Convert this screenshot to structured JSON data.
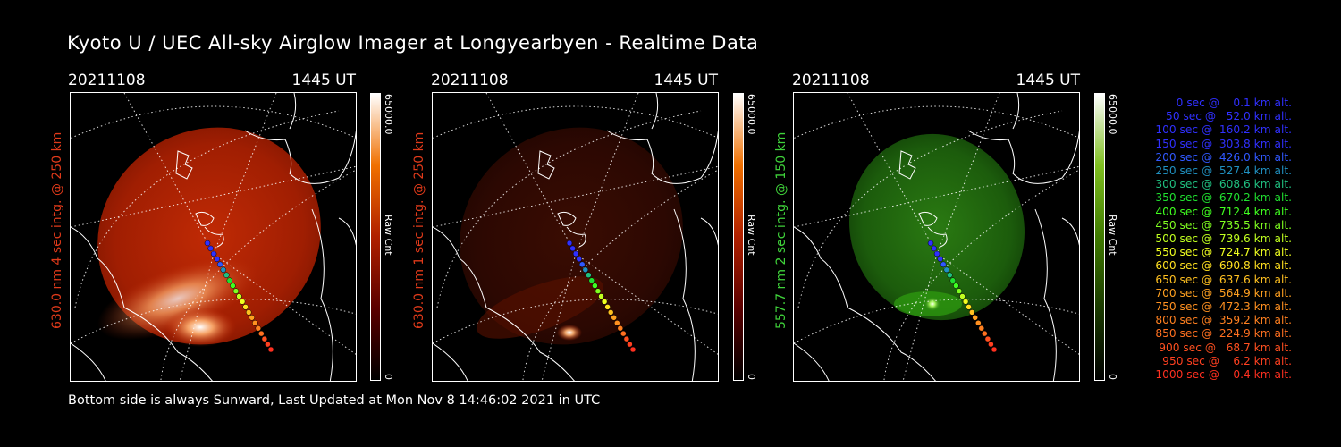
{
  "title": "Kyoto U / UEC All-sky Airglow Imager at Longyearbyen - Realtime Data",
  "footer": "Bottom side is always Sunward, Last Updated at Mon Nov  8 14:46:02 2021 in UTC",
  "panels": [
    {
      "date": "20211108",
      "time": "1445 UT",
      "label": "630.0 nm 4 sec intg. @ 250 km",
      "label_color": "#e03a1a",
      "colorbar_max": "65000.0",
      "colorbar_min": "0",
      "colorbar_unit": "Raw Cnt",
      "theme": "red",
      "glow": "bright"
    },
    {
      "date": "20211108",
      "time": "1445 UT",
      "label": "630.0 nm 1 sec intg. @ 250 km",
      "label_color": "#e03a1a",
      "colorbar_max": "65000.0",
      "colorbar_min": "0",
      "colorbar_unit": "Raw Cnt",
      "theme": "red",
      "glow": "dim"
    },
    {
      "date": "20211108",
      "time": "1445 UT",
      "label": "557.7 nm 2 sec intg. @ 150 km",
      "label_color": "#3fd23a",
      "colorbar_max": "65000.0",
      "colorbar_min": "0",
      "colorbar_unit": "Raw Cnt",
      "theme": "green",
      "glow": "green"
    }
  ],
  "legend": [
    {
      "text": "   0 sec @    0.1 km alt.",
      "color": "#3030ff"
    },
    {
      "text": "  50 sec @   52.0 km alt.",
      "color": "#3030ff"
    },
    {
      "text": " 100 sec @  160.2 km alt.",
      "color": "#3030ff"
    },
    {
      "text": " 150 sec @  303.8 km alt.",
      "color": "#3030ff"
    },
    {
      "text": " 200 sec @  426.0 km alt.",
      "color": "#3058ff"
    },
    {
      "text": " 250 sec @  527.4 km alt.",
      "color": "#2090c0"
    },
    {
      "text": " 300 sec @  608.6 km alt.",
      "color": "#20c080"
    },
    {
      "text": " 350 sec @  670.2 km alt.",
      "color": "#20e030"
    },
    {
      "text": " 400 sec @  712.4 km alt.",
      "color": "#40ff20"
    },
    {
      "text": " 450 sec @  735.5 km alt.",
      "color": "#80ff20"
    },
    {
      "text": " 500 sec @  739.6 km alt.",
      "color": "#c0ff20"
    },
    {
      "text": " 550 sec @  724.7 km alt.",
      "color": "#f0ff20"
    },
    {
      "text": " 600 sec @  690.8 km alt.",
      "color": "#ffe020"
    },
    {
      "text": " 650 sec @  637.6 km alt.",
      "color": "#ffc020"
    },
    {
      "text": " 700 sec @  564.9 km alt.",
      "color": "#ffa020"
    },
    {
      "text": " 750 sec @  472.3 km alt.",
      "color": "#ff9020"
    },
    {
      "text": " 800 sec @  359.2 km alt.",
      "color": "#ff8020"
    },
    {
      "text": " 850 sec @  224.9 km alt.",
      "color": "#ff7020"
    },
    {
      "text": " 900 sec @   68.7 km alt.",
      "color": "#ff5020"
    },
    {
      "text": " 950 sec @    6.2 km alt.",
      "color": "#ff4020"
    },
    {
      "text": "1000 sec @    0.4 km alt.",
      "color": "#ff3020"
    }
  ]
}
